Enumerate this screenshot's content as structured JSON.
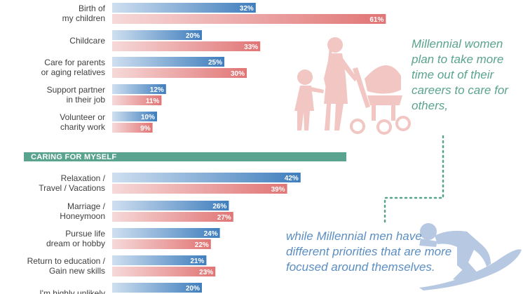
{
  "colors": {
    "men": "#3f7ebd",
    "men_light": "#cfdff0",
    "women": "#e17575",
    "women_light": "#f6d9d9",
    "section_band": "#5aa38e",
    "quote_text": "#5aa38e",
    "quote_men_text": "#5b8ec2",
    "silhouette_family": "#f2c6c2",
    "silhouette_surfer": "#b7c9e2",
    "dotted_line": "#5aa38e"
  },
  "icons": [
    "family-stroller-silhouette-icon",
    "surfer-silhouette-icon"
  ],
  "chart_data": {
    "type": "bar",
    "orientation": "horizontal",
    "xlim": [
      0,
      100
    ],
    "categories": [
      "Birth of\nmy children",
      "Childcare",
      "Care for parents\nor aging relatives",
      "Support partner\nin their job",
      "Volunteer or\ncharity work",
      "Relaxation /\nTravel / Vacations",
      "Marriage /\nHoneymoon",
      "Pursue life\ndream or hobby",
      "Return to education /\nGain new skills",
      "I'm highly unlikely"
    ],
    "series": [
      {
        "color": "#3f7ebd",
        "values": [
          32,
          20,
          25,
          12,
          10,
          42,
          26,
          24,
          21,
          20
        ]
      },
      {
        "color": "#e17575",
        "values": [
          61,
          33,
          30,
          11,
          9,
          39,
          27,
          22,
          23,
          null
        ]
      }
    ],
    "value_suffix": "%",
    "sections": [
      {
        "title": "CARING FOR MYSELF",
        "starts_before_category": 5
      }
    ]
  },
  "quotes": {
    "women": "Millennial women plan to take more time out of their careers to care for others,",
    "men": "while Millennial men have different priorities that are more focused around themselves."
  }
}
